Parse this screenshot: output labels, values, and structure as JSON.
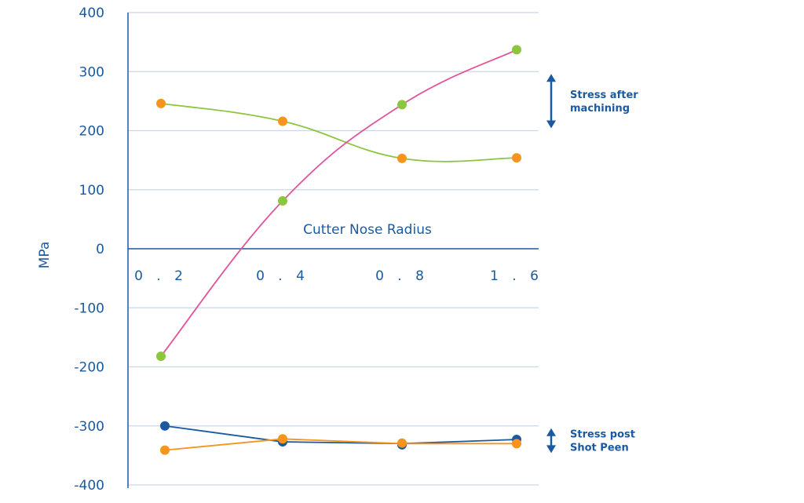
{
  "chart_data": {
    "type": "line",
    "xlabel": "Cutter Nose Radius",
    "ylabel": "MPa",
    "categories": [
      "0.2",
      "0.4",
      "0.8",
      "1.6"
    ],
    "category_labels": [
      "0 . 2",
      "0 . 4",
      "0 . 8",
      "1 . 6"
    ],
    "yticks": [
      400,
      300,
      200,
      100,
      0,
      -100,
      -200,
      -300,
      -400
    ],
    "ytick_labels": [
      "400",
      "300",
      "200",
      "100",
      "0",
      "-100",
      "-200",
      "-300",
      "-400"
    ],
    "ylim": [
      -400,
      400
    ],
    "grid": true,
    "series": [
      {
        "name": "after-machining-green-line",
        "line_color": "#8cc63f",
        "point_colors": [
          "#f7941d",
          "#f7941d",
          "#8cc63f",
          "#8cc63f"
        ],
        "values": [
          246,
          216,
          244,
          337
        ],
        "line_values": [
          246,
          216,
          153,
          154
        ]
      },
      {
        "name": "after-machining-pink-line",
        "line_color": "#e0559a",
        "point_colors": [
          "#8cc63f",
          "#8cc63f",
          "#f7941d",
          "#f7941d"
        ],
        "values": [
          -182,
          81,
          153,
          154
        ],
        "line_values": [
          -182,
          81,
          244,
          337
        ]
      },
      {
        "name": "post-peen-blue-line",
        "line_color": "#1b5aa0",
        "point_colors": [
          "#1b5aa0",
          "#1b5aa0",
          "#1b5aa0",
          "#1b5aa0"
        ],
        "values": [
          -300,
          -327,
          -332,
          -323
        ],
        "line_values": [
          -300,
          -327,
          -330,
          -323
        ]
      },
      {
        "name": "post-peen-orange-line",
        "line_color": "#f7941d",
        "point_colors": [
          "#f7941d",
          "#f7941d",
          "#f7941d",
          "#f7941d"
        ],
        "values": [
          -341,
          -322,
          -329,
          -330
        ],
        "line_values": [
          -341,
          -322,
          -330,
          -330
        ]
      }
    ],
    "annotations": [
      {
        "name": "stress-after-machining",
        "lines": [
          "Stress after",
          "machining"
        ],
        "range": [
          300,
          200
        ]
      },
      {
        "name": "stress-post-shot-peen",
        "lines": [
          "Stress post",
          "Shot Peen"
        ],
        "range": [
          -300,
          -350
        ]
      }
    ]
  }
}
